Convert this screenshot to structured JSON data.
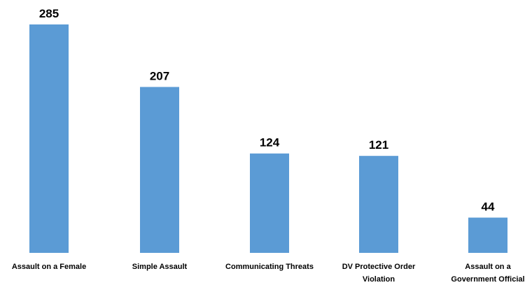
{
  "chart_data": {
    "type": "bar",
    "categories": [
      [
        "Assault on a Female"
      ],
      [
        "Simple Assault"
      ],
      [
        "Communicating Threats"
      ],
      [
        "DV Protective Order",
        "Violation"
      ],
      [
        "Assault on a",
        "Government Official"
      ]
    ],
    "values": [
      285,
      207,
      124,
      121,
      44
    ],
    "value_labels": [
      "285",
      "207",
      "124",
      "121",
      "44"
    ],
    "bar_color": "#5B9BD5",
    "title": "",
    "xlabel": "",
    "ylabel": "",
    "ylim": [
      0,
      285
    ],
    "grid": false,
    "legend": "none"
  }
}
